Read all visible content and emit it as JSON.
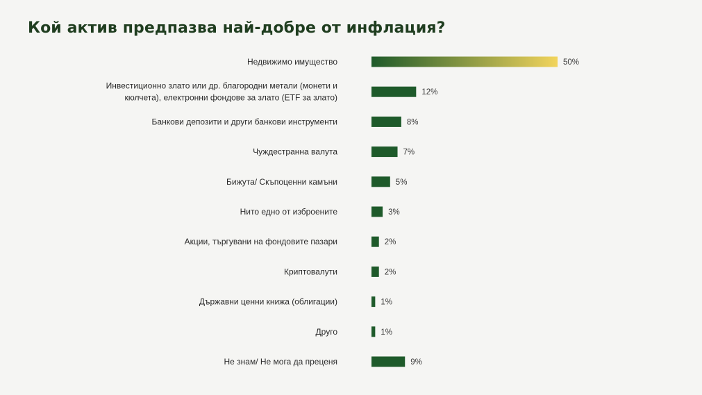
{
  "chart_data": {
    "type": "bar",
    "orientation": "horizontal",
    "title": "Кой актив предпазва най-добре от инфлация?",
    "categories": [
      "Недвижимо имущество",
      "Инвестиционно злато или др. благородни метали (монети и кюлчета), електронни фондове за злато (ЕTF за злато)",
      "Банкови депозити и други банкови инструменти",
      "Чуждестранна валута",
      "Бижута/ Скъпоценни камъни",
      "Нито едно от изброените",
      "Акции, търгувани на фондовите пазари",
      "Криптовалути",
      "Държавни ценни книжа (облигации)",
      "Друго",
      "Не знам/ Не мога да преценя"
    ],
    "category_lines": [
      [
        "Недвижимо имущество"
      ],
      [
        "Инвестиционно злато или др. благородни метали (монети и",
        "кюлчета), електронни фондове за злато (ЕTF за злато)"
      ],
      [
        "Банкови депозити и други банкови инструменти"
      ],
      [
        "Чуждестранна валута"
      ],
      [
        "Бижута/ Скъпоценни камъни"
      ],
      [
        "Нито едно от изброените"
      ],
      [
        "Акции, търгувани на фондовите пазари"
      ],
      [
        "Криптовалути"
      ],
      [
        "Държавни ценни книжа (облигации)"
      ],
      [
        "Друго"
      ],
      [
        "Не знам/ Не мога да преценя"
      ]
    ],
    "values": [
      50,
      12,
      8,
      7,
      5,
      3,
      2,
      2,
      1,
      1,
      9
    ],
    "value_labels": [
      "50%",
      "12%",
      "8%",
      "7%",
      "5%",
      "3%",
      "2%",
      "2%",
      "1%",
      "1%",
      "9%"
    ],
    "unit": "%",
    "xlim": [
      0,
      50
    ],
    "grid": false,
    "colors": {
      "bar": "#1e5a2a",
      "top_bar_gradient": [
        "#1e5a2a",
        "#f2d45c"
      ],
      "title": "#1f3d1f"
    }
  }
}
